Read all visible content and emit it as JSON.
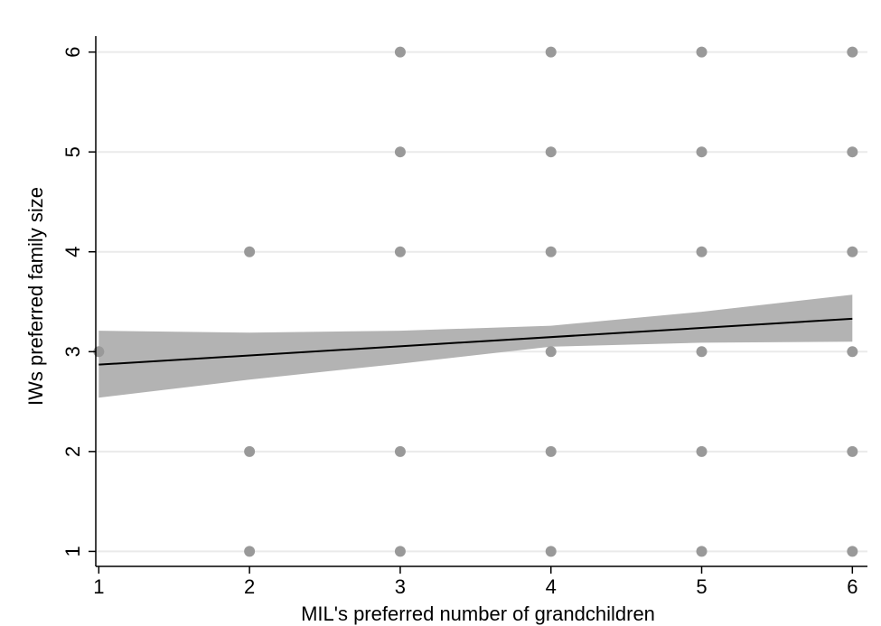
{
  "chart_data": {
    "type": "scatter",
    "title": "",
    "xlabel": "MIL's preferred number of grandchildren",
    "ylabel": "IWs preferred family size",
    "xlim": [
      0.98,
      6.1
    ],
    "ylim": [
      0.85,
      6.25
    ],
    "x_ticks": [
      1,
      2,
      3,
      4,
      5,
      6
    ],
    "y_ticks": [
      1,
      2,
      3,
      4,
      5,
      6
    ],
    "grid": "horizontal",
    "legend": "none",
    "points": [
      {
        "x": 1,
        "y": 3
      },
      {
        "x": 2,
        "y": 1
      },
      {
        "x": 2,
        "y": 2
      },
      {
        "x": 2,
        "y": 4
      },
      {
        "x": 3,
        "y": 1
      },
      {
        "x": 3,
        "y": 2
      },
      {
        "x": 3,
        "y": 4
      },
      {
        "x": 3,
        "y": 5
      },
      {
        "x": 3,
        "y": 6
      },
      {
        "x": 4,
        "y": 1
      },
      {
        "x": 4,
        "y": 2
      },
      {
        "x": 4,
        "y": 3
      },
      {
        "x": 4,
        "y": 4
      },
      {
        "x": 4,
        "y": 5
      },
      {
        "x": 4,
        "y": 6
      },
      {
        "x": 5,
        "y": 1
      },
      {
        "x": 5,
        "y": 2
      },
      {
        "x": 5,
        "y": 3
      },
      {
        "x": 5,
        "y": 4
      },
      {
        "x": 5,
        "y": 5
      },
      {
        "x": 5,
        "y": 6
      },
      {
        "x": 6,
        "y": 1
      },
      {
        "x": 6,
        "y": 2
      },
      {
        "x": 6,
        "y": 3
      },
      {
        "x": 6,
        "y": 4
      },
      {
        "x": 6,
        "y": 5
      },
      {
        "x": 6,
        "y": 6
      }
    ],
    "fit_line": {
      "x": [
        1,
        6
      ],
      "y": [
        2.87,
        3.33
      ]
    },
    "confidence_band": {
      "x": [
        1,
        2,
        3,
        4,
        5,
        6
      ],
      "upper": [
        3.21,
        3.19,
        3.21,
        3.26,
        3.4,
        3.57
      ],
      "lower": [
        2.54,
        2.72,
        2.88,
        3.05,
        3.09,
        3.1
      ]
    },
    "colors": {
      "points": "#999999",
      "band": "#b3b3b3",
      "line": "#000000",
      "grid": "#eaeaea",
      "axis": "#000000"
    }
  }
}
